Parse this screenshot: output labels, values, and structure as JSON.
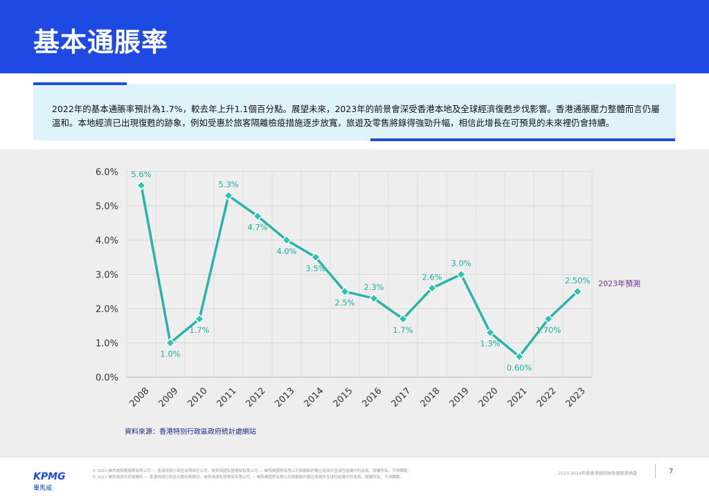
{
  "header": {
    "title": "基本通脹率"
  },
  "intro": {
    "text": "2022年的基本通脹率預計為1.7%，較去年上升1.1個百分點。展望未來，2023年的前景會深受香港本地及全球經濟復甦步伐影響。香港通脹壓力整體而言仍屬溫和。本地經濟已出現復甦的跡象，例如受惠於旅客隔離檢疫措施逐步放寬，旅遊及零售將錄得強勁升幅，相信此增長在可預見的未來裡仍會持續。"
  },
  "chart_data": {
    "type": "line",
    "categories": [
      "2008",
      "2009",
      "2010",
      "2011",
      "2012",
      "2013",
      "2014",
      "2015",
      "2016",
      "2017",
      "2018",
      "2019",
      "2020",
      "2021",
      "2022",
      "2023"
    ],
    "values": [
      5.6,
      1.0,
      1.7,
      5.3,
      4.7,
      4.0,
      3.5,
      2.5,
      2.3,
      1.7,
      2.6,
      3.0,
      1.3,
      0.6,
      1.7,
      2.5
    ],
    "data_labels": [
      "5.6%",
      "1.0%",
      "1.7%",
      "5.3%",
      "4.7%",
      "4.0%",
      "3.5%",
      "2.5%",
      "2.3%",
      "1.7%",
      "2.6%",
      "3.0%",
      "1.3%",
      "0.60%",
      "1.70%",
      "2.50%"
    ],
    "label_pos": [
      "above",
      "below",
      "below",
      "above",
      "below",
      "below",
      "below",
      "below",
      "above",
      "below",
      "above",
      "above",
      "below",
      "below",
      "below",
      "above"
    ],
    "forecast_label": "2023年預測",
    "ylim": [
      0,
      6
    ],
    "yticks": [
      "0.0%",
      "1.0%",
      "2.0%",
      "3.0%",
      "4.0%",
      "5.0%",
      "6.0%"
    ],
    "grid": true,
    "xlabel": "",
    "ylabel": "",
    "colors": {
      "line": "#26b5a4",
      "marker_fill": "#2cc3b0",
      "marker_stroke": "#ffffff",
      "label": "#1fb09f",
      "forecast": "#6b2c91"
    }
  },
  "source": {
    "text": "資料來源：香港特別行政區政府統計處網站"
  },
  "footer": {
    "logo": "KPMG",
    "logo_sub": "畢馬威",
    "legal_line1": "© 2023 畢馬威稅務服務有限公司 — 香港特別行政區有限責任公司，是與英國私營擔保有限公司 — 畢馬威國際有限公司相關聯的獨立成員所全球性組織中的成員。版權所有，不得轉載。",
    "legal_line2": "© 2023 畢馬威會計師事務所 — 香港特別行政區合夥制事務所，是與英國私營擔保有限公司 — 畢馬威國際有限公司相關聯的獨立成員所全球性組織中的成員。版權所有，不得轉載。",
    "doc_title": "2023-2024年度香港政府財政預算案摘要",
    "page_number": "7"
  }
}
